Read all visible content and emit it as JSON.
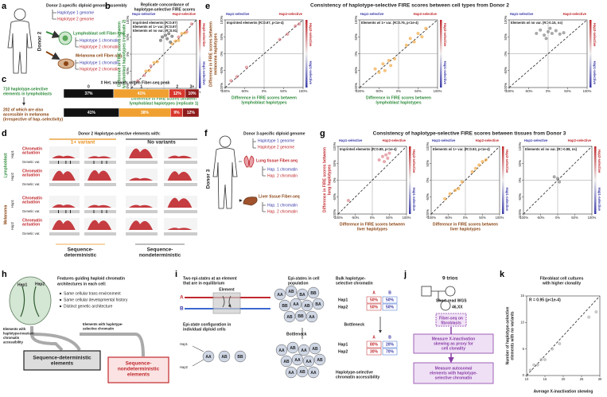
{
  "a": {
    "label": "a",
    "donor": "Donor 2",
    "title": "Donor 2-specific diploid genome assembly",
    "hap1": "Haplotype 1 genome",
    "hap2": "Haplotype 2 genome",
    "cell1": "Lymphoblast cell Fiber-seq",
    "cell1_hap1": "Haplotype 1 chromatin",
    "cell1_hap2": "Haplotype 2 chromatin",
    "cell2": "Melanoma cell Fiber-seq",
    "cell2_hap1": "Haplotype 1 chromatin",
    "cell2_hap2": "Haplotype 2 chromatin"
  },
  "b": {
    "type": "scatter",
    "label": "b",
    "title": [
      "Replicate concordance of",
      "haplotype-selective FIRE scores"
    ],
    "xlabel": [
      "Difference in FIRE scores between",
      "lymphoblast haplotypes (replicate 1)"
    ],
    "ylabel": [
      "Difference in FIRE scores between",
      "lymphoblast haplotypes (replicate 2)"
    ],
    "hap1": "Hap1-selective",
    "hap2": "Hap2-selective",
    "xlim": [
      -100,
      100
    ],
    "ylim": [
      -100,
      100
    ],
    "xticks": [
      {
        "value": -100,
        "label": "-100%"
      },
      {
        "value": -50,
        "label": "-50%"
      },
      {
        "value": 0,
        "label": "0%"
      },
      {
        "value": 50,
        "label": "50%"
      },
      {
        "value": 100,
        "label": "100%"
      }
    ],
    "yticks": [
      {
        "value": -100,
        "label": "-100%"
      },
      {
        "value": -50,
        "label": "-50%"
      },
      {
        "value": 0,
        "label": "0%"
      },
      {
        "value": 50,
        "label": "50%"
      },
      {
        "value": 100,
        "label": "100%"
      }
    ],
    "plots": [
      {
        "series": [
          {
            "name": "Imprinted elements (R=0.97)",
            "color": "#d9777f",
            "x": [
              -80,
              -60,
              -40,
              45,
              70,
              85
            ],
            "y": [
              -78,
              -62,
              -35,
              50,
              65,
              88
            ]
          },
          {
            "name": "Elements w/ 1+ var. (R=0.97)",
            "color": "#f0a030",
            "x": [
              -55,
              -45,
              -30,
              -20,
              25,
              35,
              45,
              55,
              65
            ],
            "y": [
              -50,
              -48,
              -25,
              -22,
              30,
              38,
              40,
              60,
              62
            ]
          },
          {
            "name": "Elements w/ no var. (R=0.91)",
            "color": "#555555",
            "x": [
              -10,
              -5,
              5,
              10,
              15,
              20,
              25
            ],
            "y": [
              40,
              50,
              55,
              45,
              60,
              35,
              52
            ]
          }
        ]
      }
    ]
  },
  "c": {
    "label": "c",
    "title": "# Het. variants within Fiber-seq peak",
    "categories": [
      "0",
      "1",
      "2",
      "3+"
    ],
    "colors": [
      "#111111",
      "#f0a030",
      "#d8372d",
      "#8e1b1b"
    ],
    "rows": [
      {
        "text": [
          "710 haplotype-selective",
          "elements in lymphoblasts"
        ],
        "values": [
          37,
          41,
          12,
          10
        ],
        "value_labels": [
          "37%",
          "41%",
          "12%",
          "10%"
        ]
      },
      {
        "text": [
          "202 of which are also",
          "accessible in melanoma",
          "(irrespective of hap.-selectivity)"
        ],
        "values": [
          41,
          38,
          9,
          12
        ],
        "value_labels": [
          "41%",
          "38%",
          "9%",
          "12%"
        ]
      }
    ]
  },
  "d": {
    "label": "d",
    "title": "Donor 2 Haplotype-selective elements with:",
    "group1": "1+ variant",
    "group2": "No variants",
    "row1": "Lymphoblast",
    "row2": "Melanoma",
    "hap1": "Hap1",
    "hap2": "Hap2",
    "track1": [
      "Chromatin",
      "actuation"
    ],
    "track2": "Genetic var.",
    "out1": [
      "Sequence-",
      "deterministic"
    ],
    "out2": [
      "Sequence-",
      "nondeterministic"
    ]
  },
  "e": {
    "type": "scatter",
    "label": "e",
    "title": "Consistency of haplotype-selective FIRE scores between cell types from Donor 2",
    "xlabel": [
      "Difference in FIRE scores between",
      "lymphoblast haplotypes"
    ],
    "ylabel": [
      "Difference in FIRE scores between",
      "melanoma haplotypes"
    ],
    "hap1": "Hap1-selective",
    "hap2": "Hap2-selective",
    "xlim": [
      -100,
      100
    ],
    "ylim": [
      -100,
      100
    ],
    "xticks": [
      {
        "value": -100,
        "label": "-100%"
      },
      {
        "value": -50,
        "label": "-50%"
      },
      {
        "value": 0,
        "label": "0%"
      },
      {
        "value": 50,
        "label": "50%"
      },
      {
        "value": 100,
        "label": "100%"
      }
    ],
    "yticks": [
      {
        "value": -100,
        "label": "-100%"
      },
      {
        "value": -50,
        "label": "-50%"
      },
      {
        "value": 0,
        "label": "0%"
      },
      {
        "value": 50,
        "label": "50%"
      },
      {
        "value": 100,
        "label": "100%"
      }
    ],
    "plots": [
      {
        "series": [
          {
            "name": "Imprinted elements (R=0.97, p<1e-4)",
            "color": "#d9777f",
            "x": [
              -85,
              -70,
              -45,
              40,
              60,
              80,
              90
            ],
            "y": [
              -80,
              -68,
              -40,
              42,
              58,
              82,
              88
            ]
          }
        ]
      },
      {
        "series": [
          {
            "name": "Elements w/ 1+ var. (R=0.76, p<1e-4)",
            "color": "#f0a030",
            "x": [
              -60,
              -50,
              -40,
              -35,
              -25,
              -20,
              -10,
              20,
              30,
              40,
              50,
              60,
              70
            ],
            "y": [
              -45,
              -55,
              -30,
              -50,
              -20,
              -35,
              -15,
              25,
              45,
              35,
              60,
              50,
              75
            ]
          }
        ]
      },
      {
        "series": [
          {
            "name": "Elements w/ no var. (R=-0.15, ns)",
            "color": "#777777",
            "x": [
              -30,
              -20,
              -10,
              0,
              5,
              10,
              20,
              30,
              40,
              -5
            ],
            "y": [
              60,
              70,
              55,
              65,
              75,
              60,
              68,
              58,
              62,
              45
            ]
          }
        ]
      }
    ]
  },
  "f": {
    "label": "f",
    "donor": "Donor 3",
    "title": "Donor 3-specific diploid genome",
    "hap1": "Haplotype 1 genome",
    "hap2": "Haplotype 2 genome",
    "tissue1": "Lung tissue Fiber-seq",
    "t1_hap1": "Hap. 1 chromatin",
    "t1_hap2": "Hap. 2 chromatin",
    "tissue2": "Liver tissue Fiber-seq",
    "t2_hap1": "Hap. 1 chromatin",
    "t2_hap2": "Hap. 2 chromatin"
  },
  "g": {
    "type": "scatter",
    "label": "g",
    "title": "Consistency of haplotype-selective FIRE scores between tissues from Donor 3",
    "xlabel": [
      "Difference in FIRE scores between",
      "liver haplotypes"
    ],
    "ylabel": [
      "Difference in FIRE scores between",
      "lung haplotypes"
    ],
    "hap1": "Hap1-selective",
    "hap2": "Hap2-selective",
    "xlim": [
      -100,
      100
    ],
    "ylim": [
      -100,
      100
    ],
    "xticks": [
      {
        "value": -100,
        "label": "-100%"
      },
      {
        "value": -50,
        "label": "-50%"
      },
      {
        "value": 0,
        "label": "0%"
      },
      {
        "value": 50,
        "label": "50%"
      },
      {
        "value": 100,
        "label": "100%"
      }
    ],
    "yticks": [
      {
        "value": -100,
        "label": "-100%"
      },
      {
        "value": -50,
        "label": "-50%"
      },
      {
        "value": 0,
        "label": "0%"
      },
      {
        "value": 50,
        "label": "50%"
      },
      {
        "value": 100,
        "label": "100%"
      }
    ],
    "plots": [
      {
        "series": [
          {
            "name": "Imprinted elements (R=0.89, p<1e-4)",
            "color": "#d9777f",
            "x": [
              -70,
              20,
              30,
              40,
              45,
              50,
              35
            ],
            "y": [
              -60,
              60,
              70,
              75,
              65,
              80,
              55
            ]
          }
        ]
      },
      {
        "series": [
          {
            "name": "Elements w/ 1+ var. (R=0.93, p<1e-4)",
            "color": "#f0a030",
            "x": [
              -60,
              -45,
              -30,
              -20,
              -10,
              20,
              30,
              40,
              50,
              60
            ],
            "y": [
              -55,
              -40,
              -30,
              -25,
              -5,
              25,
              35,
              45,
              55,
              60
            ]
          }
        ]
      },
      {
        "series": [
          {
            "name": "Elements w/ no var. (R=-0.88, ns)",
            "color": "#777777",
            "x": [
              -10,
              0,
              5
            ],
            "y": [
              10,
              5,
              -5
            ]
          }
        ]
      }
    ]
  },
  "h": {
    "label": "h",
    "hap1": "Hap1",
    "hap2": "Hap2",
    "title": [
      "Features guiding haploid chromatin",
      "architectures in each cell:"
    ],
    "features": [
      "Same cellular trans environment",
      "Same cellular developmental history",
      "Distinct genetic architecture"
    ],
    "branch1": [
      "Elements with",
      "haplotype-invariant",
      "chromatin",
      "accessibility"
    ],
    "branch2": [
      "Elements with haplotype-",
      "selective chromatin"
    ],
    "box1": [
      "Sequence-deterministic",
      "elements"
    ],
    "box2": [
      "Sequence-",
      "nondeterministic",
      "elements"
    ]
  },
  "i": {
    "label": "i",
    "title1": [
      "Two epi-states at an element",
      "that are in equilibrium"
    ],
    "element": "Element",
    "state_a": "A",
    "state_b": "B",
    "title2": [
      "Epi-state configuration in",
      "individual diploid cells"
    ],
    "hap1": "Hap1",
    "hap2": "Hap2",
    "title3": [
      "Epi-states in cell",
      "population"
    ],
    "bottleneck": "Bottleneck",
    "title4": [
      "Bulk haplotype-",
      "selective chromatin"
    ],
    "genotypes": [
      "AA",
      "AB",
      "BA",
      "BB"
    ],
    "table1": {
      "header": [
        "A",
        "B"
      ],
      "rows": [
        [
          "Hap1",
          "50%",
          "50%"
        ],
        [
          "Hap2",
          "50%",
          "50%"
        ]
      ]
    },
    "table2": {
      "header": [
        "A",
        "B"
      ],
      "rows": [
        [
          "Hap1",
          "80%",
          "20%"
        ],
        [
          "Hap2",
          "30%",
          "70%"
        ]
      ]
    },
    "footer": [
      "Haplotype-selective",
      "chromatin accessibility"
    ]
  },
  "j": {
    "label": "j",
    "title": "9 trios",
    "wgs": "Short-read WGS",
    "karyotype": "46,XX",
    "fiberseq": [
      "Fiber-seq on",
      "fibroblasts"
    ],
    "step1": [
      "Measure X-inactivation",
      "skewing as proxy for",
      "cell clonality"
    ],
    "step2": [
      "Measure autosomal",
      "elements with haplotype-",
      "selective chromatin"
    ]
  },
  "k": {
    "type": "scatter",
    "label": "k",
    "title": [
      "Fibroblast cell cultures",
      "with higher clonality"
    ],
    "note": "R = 0.95 (p<1e-4)",
    "xlabel": "Average X-inactivation skewing",
    "ylabel": [
      "Number of haplotype-selective",
      "elements with no variants"
    ],
    "xlim": [
      10,
      30
    ],
    "ylim": [
      0,
      15
    ],
    "xticks": [
      10,
      15,
      20,
      25,
      30
    ],
    "yticks": [
      0,
      5,
      10,
      15
    ],
    "plots": [
      {
        "series": [
          {
            "color": "#aaaaaa",
            "x": [
              11,
              12,
              13,
              14,
              15,
              17,
              19,
              27,
              29
            ],
            "y": [
              1,
              2,
              2,
              3,
              3,
              5,
              6,
              11,
              12
            ]
          }
        ]
      }
    ]
  }
}
